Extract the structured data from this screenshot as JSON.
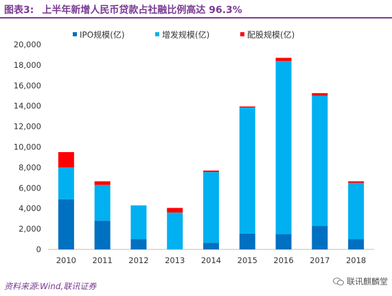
{
  "title": {
    "label": "图表3:",
    "text": "上半年新增人民币贷款占社融比例高达 96.3%"
  },
  "source": "资料来源:Wind,联讯证券",
  "watermark": "联讯麒麟堂",
  "colors": {
    "ipo": "#0070c0",
    "additional": "#00b0f0",
    "rights": "#ff0000",
    "accent": "#7a3b93"
  },
  "chart_data": {
    "type": "bar",
    "stacked": true,
    "categories": [
      "2010",
      "2011",
      "2012",
      "2013",
      "2014",
      "2015",
      "2016",
      "2017",
      "2018"
    ],
    "series": [
      {
        "name": "IPO规模(亿)",
        "values": [
          4900,
          2800,
          1000,
          0,
          650,
          1550,
          1500,
          2300,
          1000
        ]
      },
      {
        "name": "增发规模(亿)",
        "values": [
          3100,
          3500,
          3300,
          3600,
          6900,
          12300,
          16900,
          12700,
          5500
        ]
      },
      {
        "name": "配股规模(亿)",
        "values": [
          1500,
          350,
          0,
          450,
          150,
          100,
          300,
          250,
          150
        ]
      }
    ],
    "ylim": [
      0,
      20000
    ],
    "yticks": [
      "0",
      "2,000",
      "4,000",
      "6,000",
      "8,000",
      "10,000",
      "12,000",
      "14,000",
      "16,000",
      "18,000",
      "20,000"
    ],
    "legend_position": "top",
    "grid": false
  }
}
